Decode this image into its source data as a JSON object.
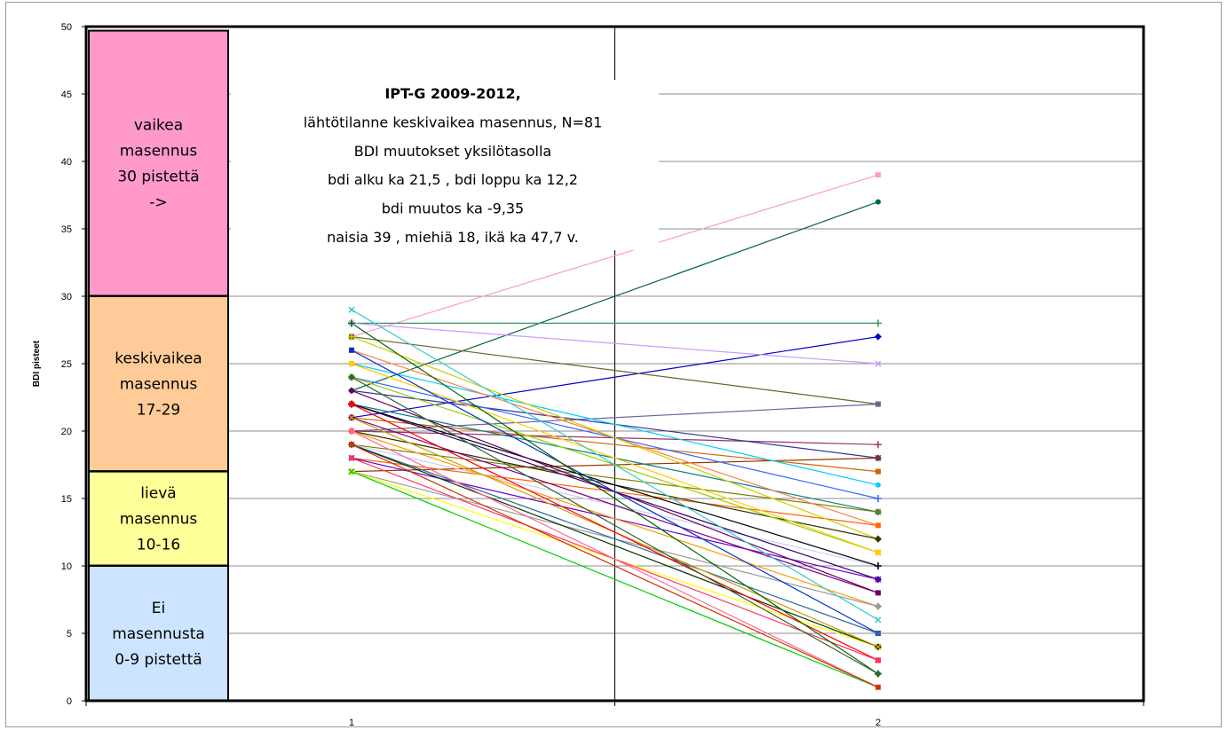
{
  "chart_data": {
    "type": "line",
    "ylabel": "BDI pisteet",
    "ylim": [
      0,
      50
    ],
    "yticks": [
      0,
      5,
      10,
      15,
      20,
      25,
      30,
      35,
      40,
      45,
      50
    ],
    "categories": [
      "1",
      "2"
    ],
    "grid": true,
    "annotation": {
      "lines": [
        "IPT-G 2009-2012,",
        "lähtötilanne keskivaikea masennus, N=81",
        "BDI muutokset yksilötasolla",
        "bdi alku ka 21,5 , bdi loppu ka 12,2",
        "bdi muutos ka -9,35",
        "naisia 39 , miehiä 18, ikä ka 47,7 v."
      ]
    },
    "bands": [
      {
        "from": 30,
        "to": 50,
        "lines": [
          "vaikea",
          "masennus",
          "30 pistettä",
          "->"
        ],
        "color": "#ff99cc"
      },
      {
        "from": 17,
        "to": 30,
        "lines": [
          "keskivaikea",
          "masennus",
          "17-29"
        ],
        "color": "#ffcc99"
      },
      {
        "from": 10,
        "to": 17,
        "lines": [
          "lievä",
          "masennus",
          "10-16"
        ],
        "color": "#ffff99"
      },
      {
        "from": 0,
        "to": 10,
        "lines": [
          "Ei",
          "masennusta",
          "0-9 pistettä"
        ],
        "color": "#cce4ff"
      }
    ],
    "series": [
      {
        "values": [
          27,
          39
        ],
        "color": "#ff99cc"
      },
      {
        "values": [
          23,
          37
        ],
        "color": "#006633"
      },
      {
        "values": [
          28,
          28
        ],
        "color": "#339966"
      },
      {
        "values": [
          21,
          27
        ],
        "color": "#0000cc"
      },
      {
        "values": [
          28,
          25
        ],
        "color": "#cc99ff"
      },
      {
        "values": [
          27,
          22
        ],
        "color": "#666633"
      },
      {
        "values": [
          20,
          22
        ],
        "color": "#666699"
      },
      {
        "values": [
          20,
          19
        ],
        "color": "#993366"
      },
      {
        "values": [
          23,
          18
        ],
        "color": "#333399"
      },
      {
        "values": [
          17,
          18
        ],
        "color": "#993300"
      },
      {
        "values": [
          21,
          17
        ],
        "color": "#cc6600"
      },
      {
        "values": [
          25,
          16
        ],
        "color": "#00ccff"
      },
      {
        "values": [
          24,
          15
        ],
        "color": "#3366ff"
      },
      {
        "values": [
          22,
          14
        ],
        "color": "#008080"
      },
      {
        "values": [
          19,
          14
        ],
        "color": "#808000"
      },
      {
        "values": [
          26,
          13
        ],
        "color": "#ff8040"
      },
      {
        "values": [
          18,
          13
        ],
        "color": "#ff6600"
      },
      {
        "values": [
          27,
          12
        ],
        "color": "#cccc00"
      },
      {
        "values": [
          20,
          12
        ],
        "color": "#333300"
      },
      {
        "values": [
          24,
          11
        ],
        "color": "#99cc00"
      },
      {
        "values": [
          25,
          11
        ],
        "color": "#ffcc00"
      },
      {
        "values": [
          19,
          10
        ],
        "color": "#ccccff"
      },
      {
        "values": [
          22,
          10
        ],
        "color": "#000000"
      },
      {
        "values": [
          22,
          9
        ],
        "color": "#330066"
      },
      {
        "values": [
          18,
          9
        ],
        "color": "#6600cc"
      },
      {
        "values": [
          21,
          8
        ],
        "color": "#800080"
      },
      {
        "values": [
          23,
          8
        ],
        "color": "#660066"
      },
      {
        "values": [
          20,
          7
        ],
        "color": "#ff9900"
      },
      {
        "values": [
          17,
          7
        ],
        "color": "#999999"
      },
      {
        "values": [
          29,
          6
        ],
        "color": "#33cccc"
      },
      {
        "values": [
          26,
          5
        ],
        "color": "#0033cc"
      },
      {
        "values": [
          19,
          5
        ],
        "color": "#336699"
      },
      {
        "values": [
          17,
          4
        ],
        "color": "#ffff00"
      },
      {
        "values": [
          19,
          4
        ],
        "color": "#003300"
      },
      {
        "values": [
          21,
          4
        ],
        "color": "#cc9900"
      },
      {
        "values": [
          22,
          3
        ],
        "color": "#ff0000"
      },
      {
        "values": [
          18,
          3
        ],
        "color": "#ff3366"
      },
      {
        "values": [
          28,
          2
        ],
        "color": "#006600"
      },
      {
        "values": [
          24,
          2
        ],
        "color": "#336633"
      },
      {
        "values": [
          17,
          1
        ],
        "color": "#00cc00"
      },
      {
        "values": [
          20,
          1
        ],
        "color": "#ff6699"
      },
      {
        "values": [
          19,
          1
        ],
        "color": "#cc3300"
      }
    ]
  }
}
